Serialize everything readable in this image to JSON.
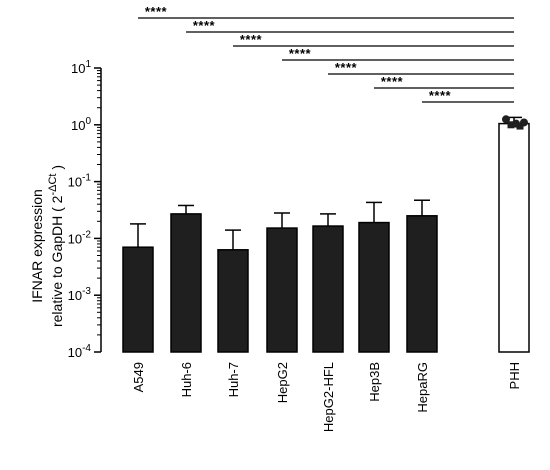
{
  "chart_data": {
    "type": "bar",
    "categories": [
      "A549",
      "Huh-6",
      "Huh-7",
      "HepG2",
      "HepG2-HFL",
      "Hep3B",
      "HepaRG",
      "PHH"
    ],
    "values": [
      0.007,
      0.027,
      0.0063,
      0.0152,
      0.0165,
      0.019,
      0.025,
      1.05
    ],
    "error_upper": [
      0.018,
      0.038,
      0.014,
      0.028,
      0.027,
      0.043,
      0.047,
      1.35
    ],
    "bar_fill": [
      "#1f1f1f",
      "#1f1f1f",
      "#1f1f1f",
      "#1f1f1f",
      "#1f1f1f",
      "#1f1f1f",
      "#1f1f1f",
      "#ffffff"
    ],
    "points": [
      {
        "category": "PHH",
        "values": [
          1.25,
          1.0,
          1.05,
          0.95,
          1.1
        ]
      }
    ],
    "yscale": "log",
    "ylim": [
      0.0001,
      10
    ],
    "ytick_labels": [
      {
        "base": "10",
        "exp": "-4"
      },
      {
        "base": "10",
        "exp": "-3"
      },
      {
        "base": "10",
        "exp": "-2"
      },
      {
        "base": "10",
        "exp": "-1"
      },
      {
        "base": "10",
        "exp": "0"
      },
      {
        "base": "10",
        "exp": "1"
      }
    ],
    "ylabel_line1": "IFNAR expression",
    "ylabel_line2_prefix": "relative to GapDH ( 2",
    "ylabel_line2_sup": "-ΔCt",
    "ylabel_line2_suffix": " )",
    "significance": [
      {
        "from": "A549",
        "to": "PHH",
        "label": "****"
      },
      {
        "from": "Huh-6",
        "to": "PHH",
        "label": "****"
      },
      {
        "from": "Huh-7",
        "to": "PHH",
        "label": "****"
      },
      {
        "from": "HepG2",
        "to": "PHH",
        "label": "****"
      },
      {
        "from": "HepG2-HFL",
        "to": "PHH",
        "label": "****"
      },
      {
        "from": "Hep3B",
        "to": "PHH",
        "label": "****"
      },
      {
        "from": "HepaRG",
        "to": "PHH",
        "label": "****"
      }
    ]
  }
}
